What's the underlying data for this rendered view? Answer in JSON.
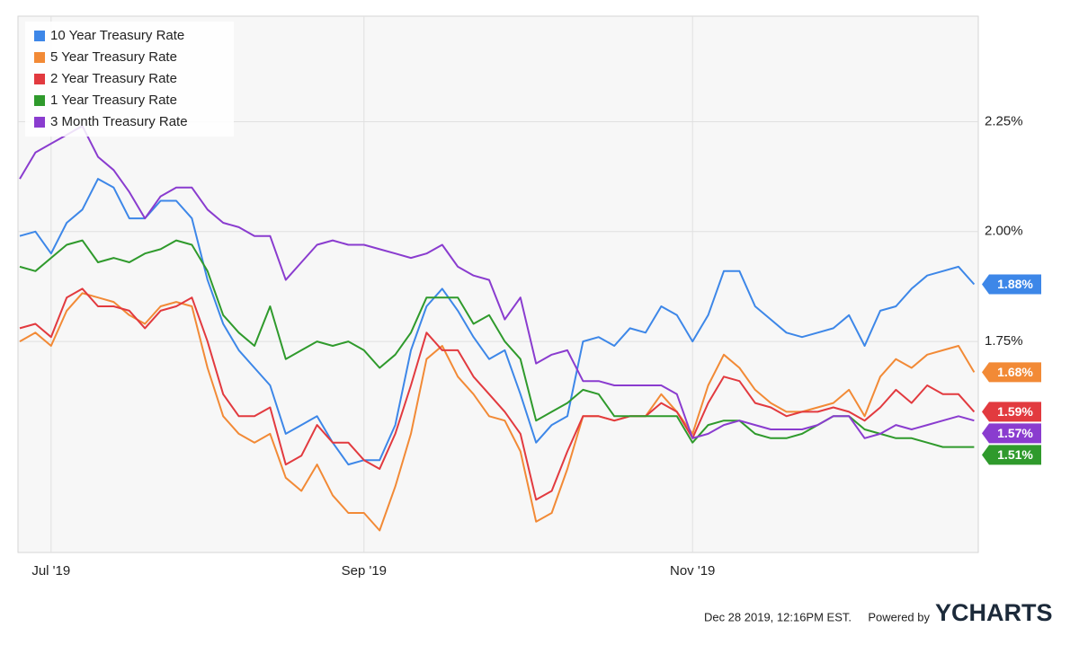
{
  "chart_data": {
    "type": "line",
    "categories": [
      null,
      null,
      "Jul '19",
      null,
      null,
      null,
      null,
      null,
      null,
      null,
      null,
      null,
      null,
      null,
      null,
      null,
      null,
      null,
      null,
      null,
      null,
      null,
      "Sep '19",
      null,
      null,
      null,
      null,
      null,
      null,
      null,
      null,
      null,
      null,
      null,
      null,
      null,
      null,
      null,
      null,
      null,
      null,
      null,
      null,
      "Nov '19",
      null,
      null,
      null,
      null,
      null,
      null,
      null,
      null,
      null,
      null,
      null,
      null,
      null,
      null,
      null,
      null,
      null,
      null
    ],
    "ylim": [
      1.27,
      2.49
    ],
    "yticks": [
      {
        "value": 1.75,
        "label": "1.75%"
      },
      {
        "value": 2.0,
        "label": "2.00%"
      },
      {
        "value": 2.25,
        "label": "2.25%"
      }
    ],
    "grid": true,
    "legend": "top-left",
    "series": [
      {
        "name": "10 Year Treasury Rate",
        "color": "#3d87e8",
        "values": [
          1.99,
          2.0,
          1.95,
          2.02,
          2.05,
          2.12,
          2.1,
          2.03,
          2.03,
          2.07,
          2.07,
          2.03,
          1.89,
          1.79,
          1.73,
          1.69,
          1.65,
          1.54,
          1.56,
          1.58,
          1.52,
          1.47,
          1.48,
          1.48,
          1.56,
          1.73,
          1.83,
          1.87,
          1.82,
          1.76,
          1.71,
          1.73,
          1.63,
          1.52,
          1.56,
          1.58,
          1.75,
          1.76,
          1.74,
          1.78,
          1.77,
          1.83,
          1.81,
          1.75,
          1.81,
          1.91,
          1.91,
          1.83,
          1.8,
          1.77,
          1.76,
          1.77,
          1.78,
          1.81,
          1.74,
          1.82,
          1.83,
          1.87,
          1.9,
          1.91,
          1.92,
          1.88
        ],
        "value_labels": [
          null,
          null,
          null,
          null,
          null,
          null,
          null,
          null,
          null,
          null,
          null,
          null,
          null,
          null,
          null,
          null,
          null,
          null,
          null,
          null,
          null,
          null,
          null,
          null,
          null,
          null,
          null,
          null,
          null,
          null,
          null,
          null,
          null,
          null,
          null,
          null,
          null,
          null,
          null,
          null,
          null,
          null,
          null,
          null,
          null,
          null,
          null,
          null,
          null,
          null,
          null,
          null,
          null,
          null,
          null,
          null,
          null,
          null,
          null,
          null,
          null,
          "1.88%"
        ]
      },
      {
        "name": "5 Year Treasury Rate",
        "color": "#f28a36",
        "values": [
          1.75,
          1.77,
          1.74,
          1.82,
          1.86,
          1.85,
          1.84,
          1.81,
          1.79,
          1.83,
          1.84,
          1.83,
          1.69,
          1.58,
          1.54,
          1.52,
          1.54,
          1.44,
          1.41,
          1.47,
          1.4,
          1.36,
          1.36,
          1.32,
          1.42,
          1.54,
          1.71,
          1.74,
          1.67,
          1.63,
          1.58,
          1.57,
          1.5,
          1.34,
          1.36,
          1.46,
          1.58,
          1.58,
          1.57,
          1.58,
          1.58,
          1.63,
          1.59,
          1.54,
          1.65,
          1.72,
          1.69,
          1.64,
          1.61,
          1.59,
          1.59,
          1.6,
          1.61,
          1.64,
          1.58,
          1.67,
          1.71,
          1.69,
          1.72,
          1.73,
          1.74,
          1.68
        ],
        "value_labels": [
          null,
          null,
          null,
          null,
          null,
          null,
          null,
          null,
          null,
          null,
          null,
          null,
          null,
          null,
          null,
          null,
          null,
          null,
          null,
          null,
          null,
          null,
          null,
          null,
          null,
          null,
          null,
          null,
          null,
          null,
          null,
          null,
          null,
          null,
          null,
          null,
          null,
          null,
          null,
          null,
          null,
          null,
          null,
          null,
          null,
          null,
          null,
          null,
          null,
          null,
          null,
          null,
          null,
          null,
          null,
          null,
          null,
          null,
          null,
          null,
          null,
          "1.68%"
        ]
      },
      {
        "name": "2 Year Treasury Rate",
        "color": "#e23a3f",
        "values": [
          1.78,
          1.79,
          1.76,
          1.85,
          1.87,
          1.83,
          1.83,
          1.82,
          1.78,
          1.82,
          1.83,
          1.85,
          1.75,
          1.63,
          1.58,
          1.58,
          1.6,
          1.47,
          1.49,
          1.56,
          1.52,
          1.52,
          1.48,
          1.46,
          1.54,
          1.65,
          1.77,
          1.73,
          1.73,
          1.67,
          1.63,
          1.59,
          1.54,
          1.39,
          1.41,
          1.5,
          1.58,
          1.58,
          1.57,
          1.58,
          1.58,
          1.61,
          1.59,
          1.53,
          1.61,
          1.67,
          1.66,
          1.61,
          1.6,
          1.58,
          1.59,
          1.59,
          1.6,
          1.59,
          1.57,
          1.6,
          1.64,
          1.61,
          1.65,
          1.63,
          1.63,
          1.59
        ],
        "value_labels": [
          null,
          null,
          null,
          null,
          null,
          null,
          null,
          null,
          null,
          null,
          null,
          null,
          null,
          null,
          null,
          null,
          null,
          null,
          null,
          null,
          null,
          null,
          null,
          null,
          null,
          null,
          null,
          null,
          null,
          null,
          null,
          null,
          null,
          null,
          null,
          null,
          null,
          null,
          null,
          null,
          null,
          null,
          null,
          null,
          null,
          null,
          null,
          null,
          null,
          null,
          null,
          null,
          null,
          null,
          null,
          null,
          null,
          null,
          null,
          null,
          null,
          "1.59%"
        ]
      },
      {
        "name": "1 Year Treasury Rate",
        "color": "#2f9a2c",
        "values": [
          1.92,
          1.91,
          1.94,
          1.97,
          1.98,
          1.93,
          1.94,
          1.93,
          1.95,
          1.96,
          1.98,
          1.97,
          1.91,
          1.81,
          1.77,
          1.74,
          1.83,
          1.71,
          1.73,
          1.75,
          1.74,
          1.75,
          1.73,
          1.69,
          1.72,
          1.77,
          1.85,
          1.85,
          1.85,
          1.79,
          1.81,
          1.75,
          1.71,
          1.57,
          1.59,
          1.61,
          1.64,
          1.63,
          1.58,
          1.58,
          1.58,
          1.58,
          1.58,
          1.52,
          1.56,
          1.57,
          1.57,
          1.54,
          1.53,
          1.53,
          1.54,
          1.56,
          1.58,
          1.58,
          1.55,
          1.54,
          1.53,
          1.53,
          1.52,
          1.51,
          1.51,
          1.51
        ],
        "value_labels": [
          null,
          null,
          null,
          null,
          null,
          null,
          null,
          null,
          null,
          null,
          null,
          null,
          null,
          null,
          null,
          null,
          null,
          null,
          null,
          null,
          null,
          null,
          null,
          null,
          null,
          null,
          null,
          null,
          null,
          null,
          null,
          null,
          null,
          null,
          null,
          null,
          null,
          null,
          null,
          null,
          null,
          null,
          null,
          null,
          null,
          null,
          null,
          null,
          null,
          null,
          null,
          null,
          null,
          null,
          null,
          null,
          null,
          null,
          null,
          null,
          null,
          "1.51%"
        ]
      },
      {
        "name": "3 Month Treasury Rate",
        "color": "#8a3ccf",
        "values": [
          2.12,
          2.18,
          2.2,
          2.22,
          2.24,
          2.17,
          2.14,
          2.09,
          2.03,
          2.08,
          2.1,
          2.1,
          2.05,
          2.02,
          2.01,
          1.99,
          1.99,
          1.89,
          1.93,
          1.97,
          1.98,
          1.97,
          1.97,
          1.96,
          1.95,
          1.94,
          1.95,
          1.97,
          1.92,
          1.9,
          1.89,
          1.8,
          1.85,
          1.7,
          1.72,
          1.73,
          1.66,
          1.66,
          1.65,
          1.65,
          1.65,
          1.65,
          1.63,
          1.53,
          1.54,
          1.56,
          1.57,
          1.56,
          1.55,
          1.55,
          1.55,
          1.56,
          1.58,
          1.58,
          1.53,
          1.54,
          1.56,
          1.55,
          1.56,
          1.57,
          1.58,
          1.57
        ],
        "value_labels": [
          null,
          null,
          null,
          null,
          null,
          null,
          null,
          null,
          null,
          null,
          null,
          null,
          null,
          null,
          null,
          null,
          null,
          null,
          null,
          null,
          null,
          null,
          null,
          null,
          null,
          null,
          null,
          null,
          null,
          null,
          null,
          null,
          null,
          null,
          null,
          null,
          null,
          null,
          null,
          null,
          null,
          null,
          null,
          null,
          null,
          null,
          null,
          null,
          null,
          null,
          null,
          null,
          null,
          null,
          null,
          null,
          null,
          null,
          null,
          null,
          null,
          "1.57%"
        ]
      }
    ]
  },
  "footer": {
    "timestamp": "Dec 28 2019, 12:16PM EST.",
    "powered_by": "Powered by",
    "brand": "YCHARTS"
  }
}
